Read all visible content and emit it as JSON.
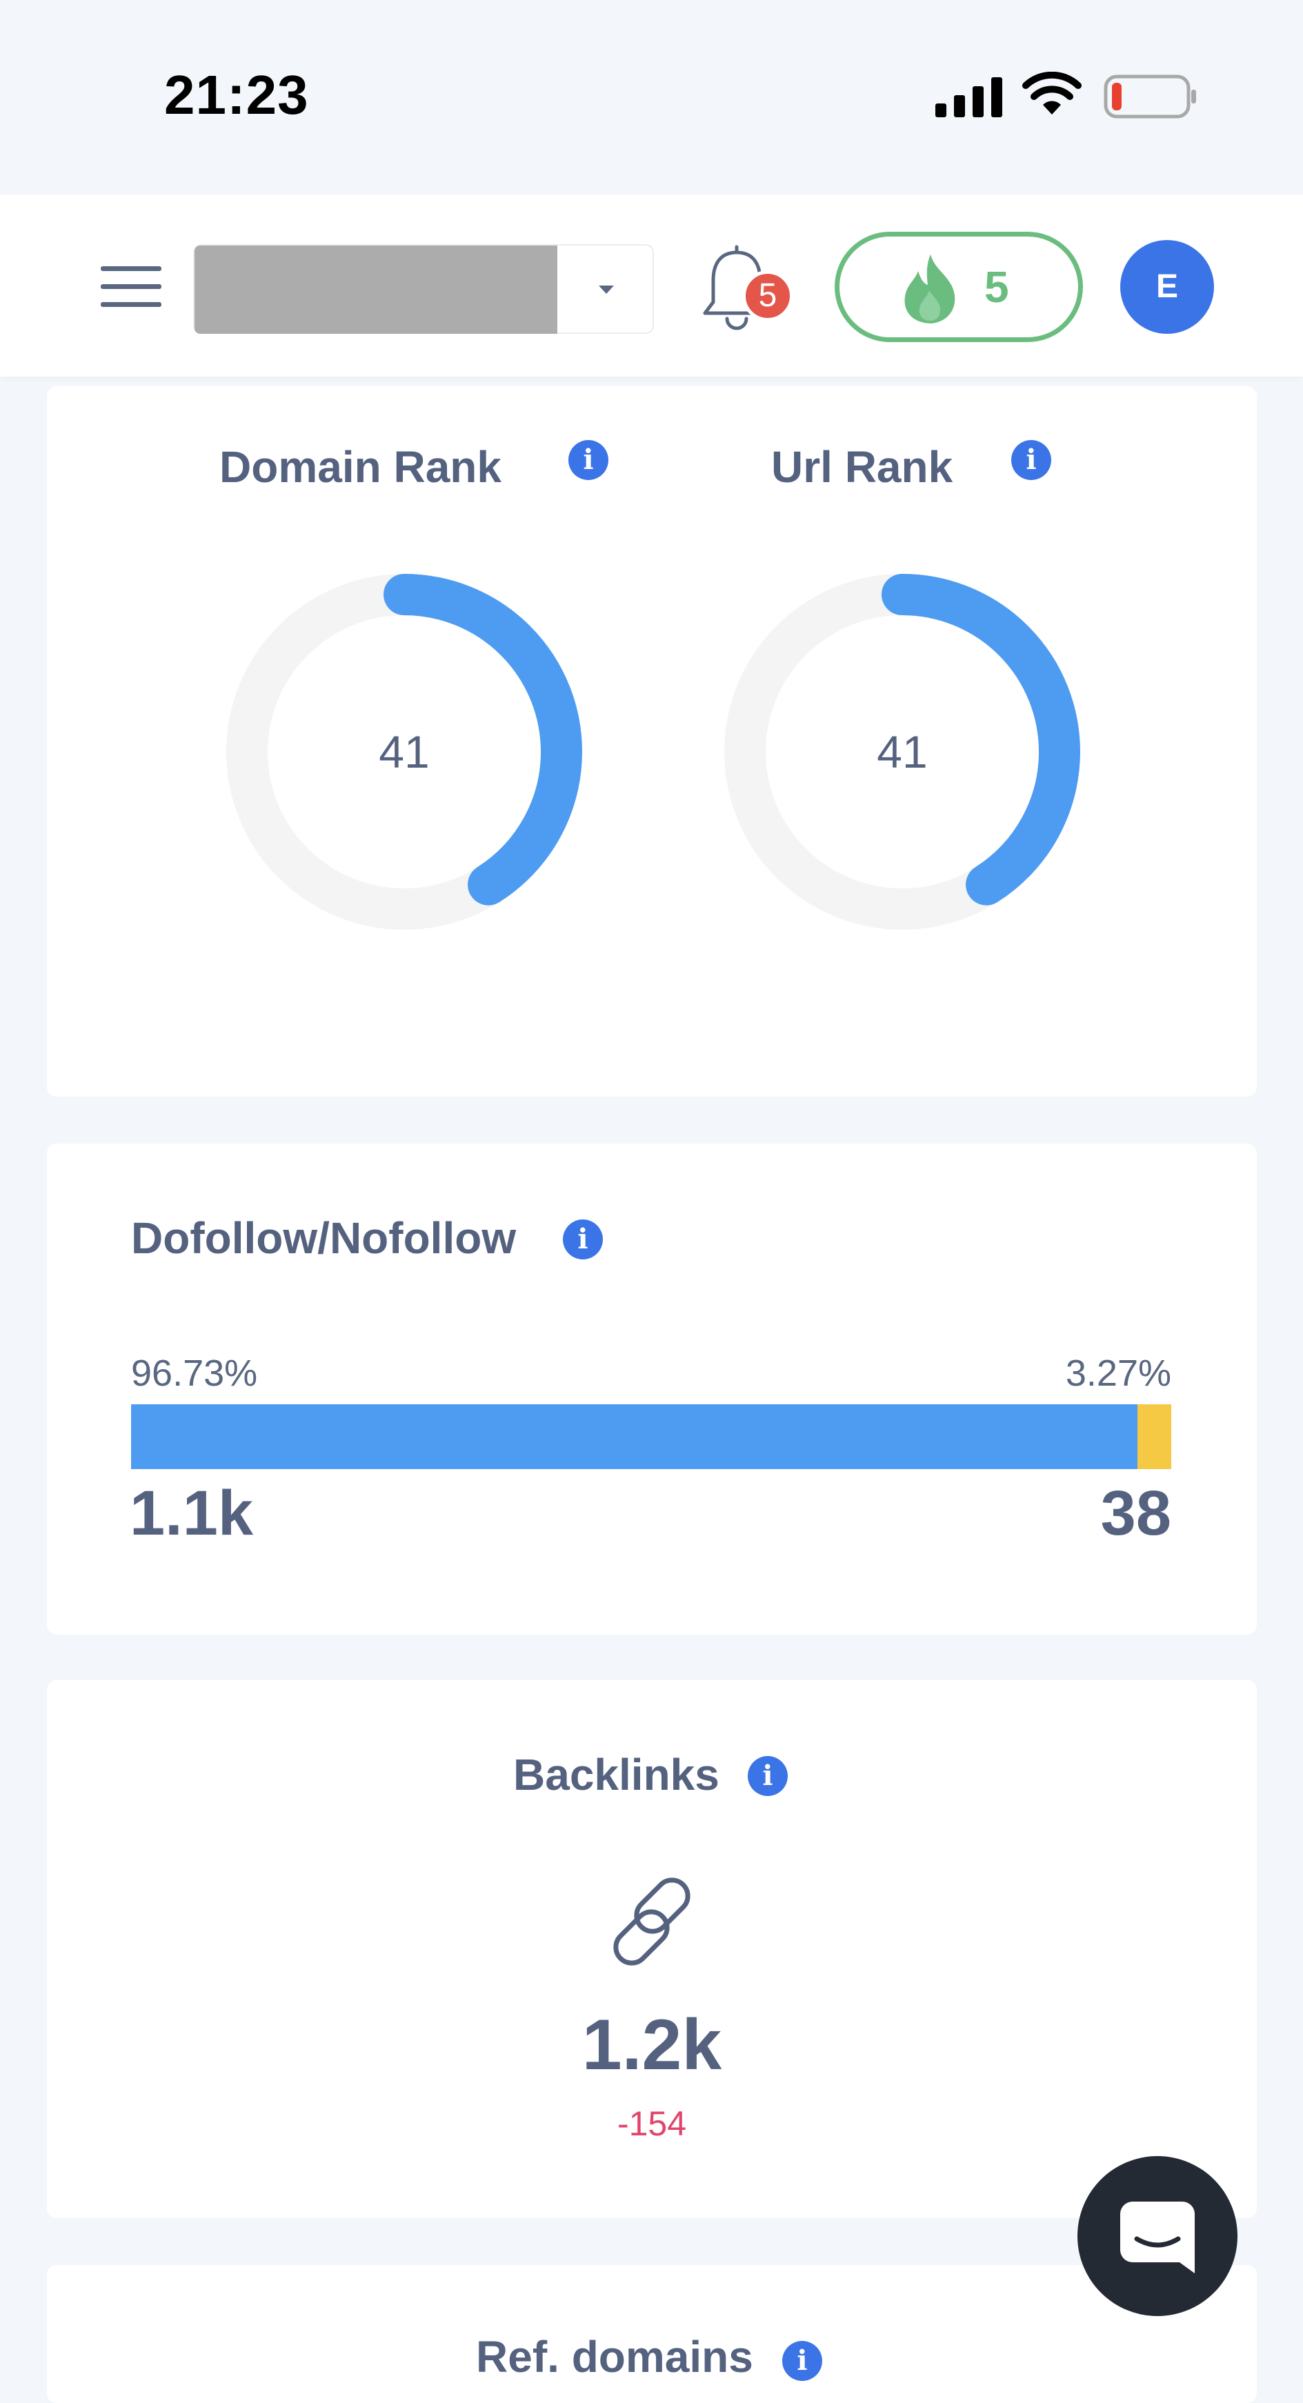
{
  "status_bar": {
    "time": "21:23"
  },
  "header": {
    "notifications_count": "5",
    "streak_count": "5",
    "avatar_initial": "E"
  },
  "ranks": {
    "domain_rank": {
      "title": "Domain Rank",
      "value": "41",
      "fraction": 0.41
    },
    "url_rank": {
      "title": "Url Rank",
      "value": "41",
      "fraction": 0.41
    }
  },
  "follow": {
    "title": "Dofollow/Nofollow",
    "dofollow_percent": "96.73%",
    "nofollow_percent": "3.27%",
    "dofollow_fraction": 0.9673,
    "dofollow_count": "1.1k",
    "nofollow_count": "38"
  },
  "backlinks": {
    "title": "Backlinks",
    "value": "1.2k",
    "delta": "-154"
  },
  "ref_domains": {
    "title": "Ref. domains"
  },
  "colors": {
    "accent_blue": "#3b74e6",
    "gauge_blue": "#4e9cf1",
    "nofollow_yellow": "#f6c945",
    "streak_green": "#6bbd7f",
    "delta_red": "#e0456b"
  }
}
